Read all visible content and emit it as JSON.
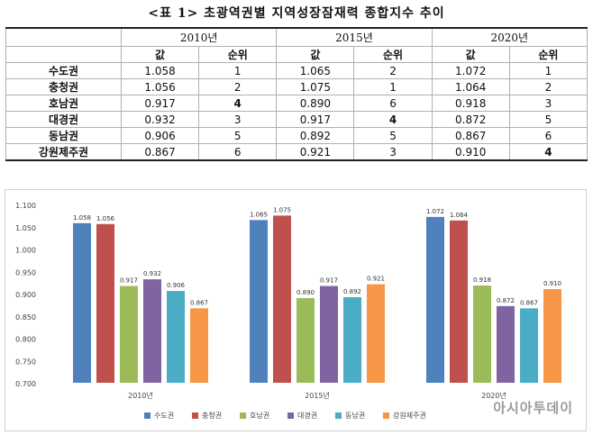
{
  "title": "<표 1> 초광역권별 지역성장잠재력 종합지수 추이",
  "table": {
    "years": [
      "2010년",
      "2015년",
      "2020년"
    ],
    "sub_headers": [
      "값",
      "순위",
      "값",
      "순위",
      "값",
      "순위"
    ],
    "rows": [
      {
        "region": "수도권",
        "cells": [
          "1.058",
          "1",
          "1.065",
          "2",
          "1.072",
          "1"
        ]
      },
      {
        "region": "충청권",
        "cells": [
          "1.056",
          "2",
          "1.075",
          "1",
          "1.064",
          "2"
        ]
      },
      {
        "region": "호남권",
        "cells": [
          "0.917",
          "4",
          "0.890",
          "6",
          "0.918",
          "3"
        ]
      },
      {
        "region": "대경권",
        "cells": [
          "0.932",
          "3",
          "0.917",
          "4",
          "0.872",
          "5"
        ]
      },
      {
        "region": "동남권",
        "cells": [
          "0.906",
          "5",
          "0.892",
          "5",
          "0.867",
          "6"
        ]
      },
      {
        "region": "강원제주권",
        "cells": [
          "0.867",
          "6",
          "0.921",
          "3",
          "0.910",
          "4"
        ]
      }
    ]
  },
  "chart_data": {
    "type": "bar",
    "categories": [
      "2010년",
      "2015년",
      "2020년"
    ],
    "series": [
      {
        "name": "수도권",
        "values": [
          1.058,
          1.065,
          1.072
        ],
        "color": "#4f81bd"
      },
      {
        "name": "충청권",
        "values": [
          1.056,
          1.075,
          1.064
        ],
        "color": "#c0504d"
      },
      {
        "name": "호남권",
        "values": [
          0.917,
          0.89,
          0.918
        ],
        "color": "#9bbb59"
      },
      {
        "name": "대경권",
        "values": [
          0.932,
          0.917,
          0.872
        ],
        "color": "#8064a2"
      },
      {
        "name": "동남권",
        "values": [
          0.906,
          0.892,
          0.867
        ],
        "color": "#4bacc6"
      },
      {
        "name": "강원제주권",
        "values": [
          0.867,
          0.921,
          0.91
        ],
        "color": "#f79646"
      }
    ],
    "ylim": [
      0.7,
      1.1
    ],
    "yticks": [
      "0.700",
      "0.750",
      "0.800",
      "0.850",
      "0.900",
      "0.950",
      "1.000",
      "1.050",
      "1.100"
    ],
    "grid": false,
    "legend": "bottom",
    "data_labels": true
  },
  "watermark": "아시아투데이"
}
